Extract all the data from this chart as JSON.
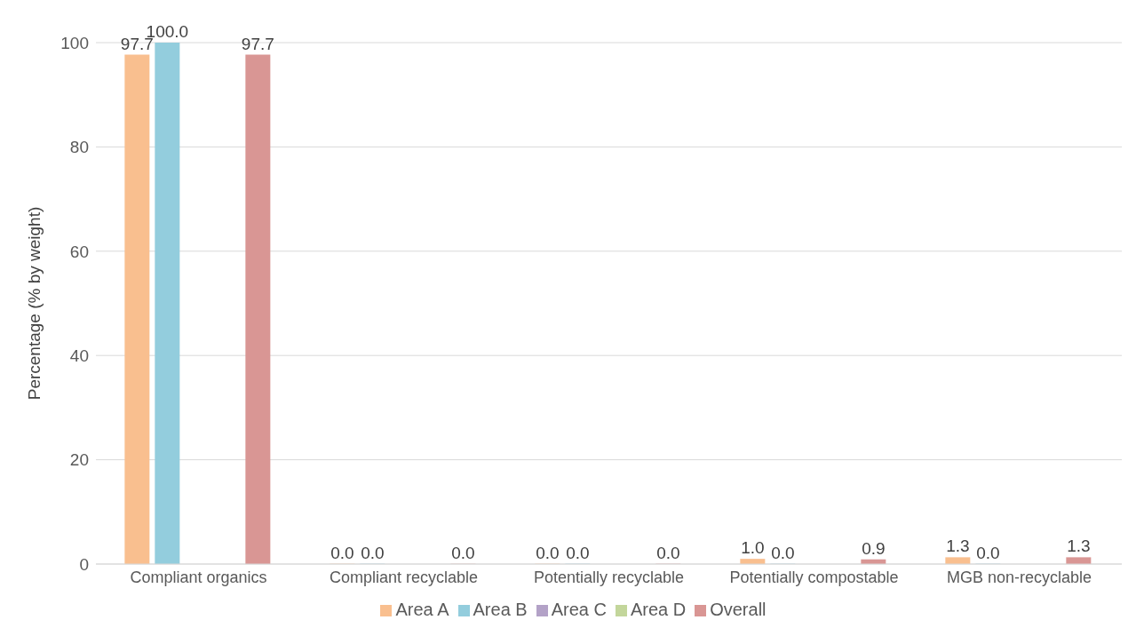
{
  "chart_data": {
    "type": "bar",
    "ylabel": "Percentage (% by weight)",
    "categories": [
      "Compliant organics",
      "Compliant recyclable",
      "Potentially recyclable",
      "Potentially compostable",
      "MGB non-recyclable"
    ],
    "series": [
      {
        "name": "Area A",
        "color": "#f9bf8f",
        "values": [
          97.7,
          0.0,
          0.0,
          1.0,
          1.3
        ],
        "value_labels": [
          "97.7",
          "0.0",
          "0.0",
          "1.0",
          "1.3"
        ]
      },
      {
        "name": "Area B",
        "color": "#93cddd",
        "values": [
          100.0,
          0.0,
          0.0,
          0.0,
          0.0
        ],
        "value_labels": [
          "100.0",
          "0.0",
          "0.0",
          "0.0",
          "0.0"
        ]
      },
      {
        "name": "Area C",
        "color": "#b3a2c7",
        "values": [
          null,
          null,
          null,
          null,
          null
        ]
      },
      {
        "name": "Area D",
        "color": "#c3d69b",
        "values": [
          null,
          null,
          null,
          null,
          null
        ]
      },
      {
        "name": "Overall",
        "color": "#d99694",
        "values": [
          97.7,
          0.0,
          0.0,
          0.9,
          1.3
        ],
        "value_labels": [
          "97.7",
          "0.0",
          "0.0",
          "0.9",
          "1.3"
        ]
      }
    ],
    "ylim": [
      0,
      100
    ],
    "yticks": [
      0,
      20,
      40,
      60,
      80,
      100
    ],
    "grid": "y",
    "legend": "bottom"
  }
}
